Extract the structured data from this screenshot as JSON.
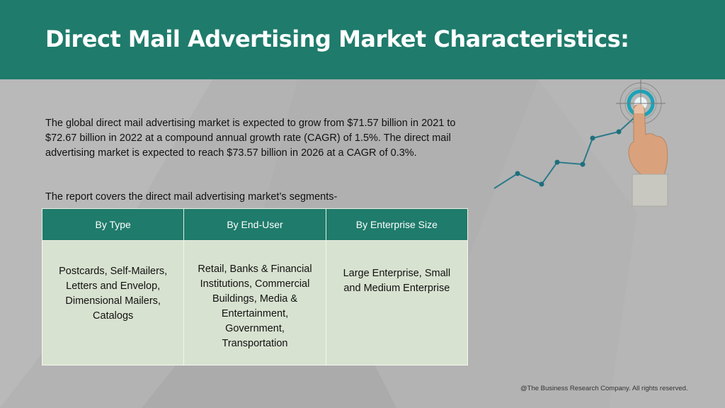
{
  "header": {
    "title": "Direct Mail Advertising Market Characteristics:"
  },
  "description": "The global direct mail advertising market is expected to grow from $71.57 billion in 2021 to $72.67 billion in 2022 at a compound annual growth rate (CAGR) of 1.5%. The direct mail advertising market is expected to reach $73.57 billion in 2026 at a CAGR of 0.3%.",
  "segments_intro": "The report covers the direct mail advertising market’s segments-",
  "segments_table": {
    "headers": [
      "By Type",
      "By End-User",
      "By Enterprise Size"
    ],
    "cells": [
      "Postcards, Self-Mailers, Letters and Envelop, Dimensional Mailers, Catalogs",
      "Retail, Banks & Financial Institutions, Commercial Buildings, Media & Entertainment, Government, Transportation",
      "Large Enterprise, Small and Medium Enterprise"
    ]
  },
  "footer": "@The Business Research Company. All rights reserved.",
  "colors": {
    "header_bg": "#1f7b6b",
    "page_bg": "#b3b3b3",
    "cell_bg": "#d8e2d0",
    "accent": "#1aa3b8"
  },
  "graphic": {
    "icons": [
      "rising-line-graph-icon",
      "target-icon",
      "pointing-hand-icon"
    ]
  }
}
